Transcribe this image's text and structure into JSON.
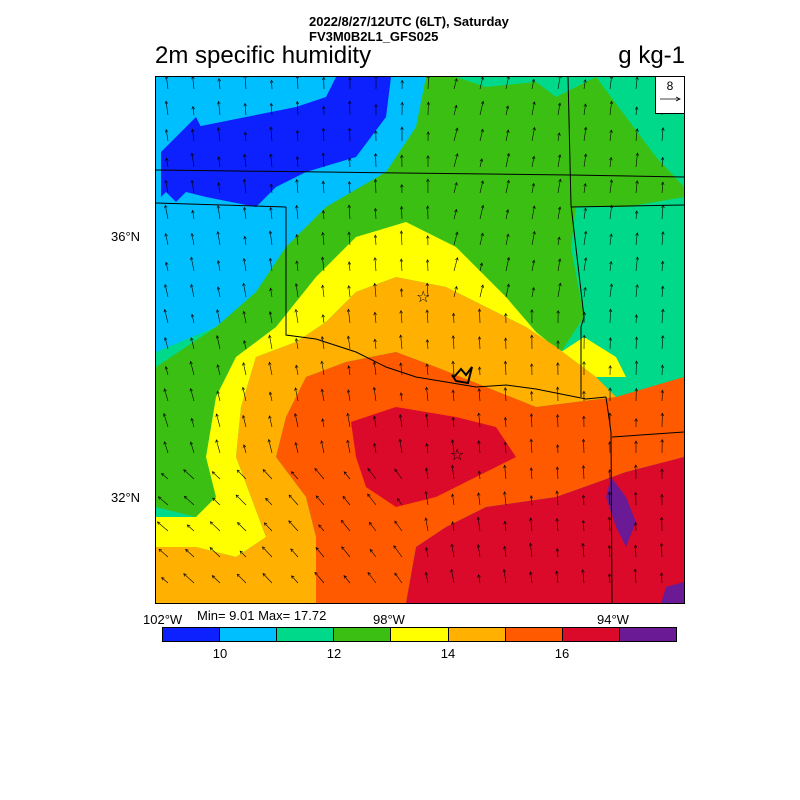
{
  "header": {
    "date_line": "2022/8/27/12UTC (6LT), Saturday",
    "model_line": "FV3M0B2L1_GFS025"
  },
  "title": "2m specific humidity",
  "units": "g kg-1",
  "vector_ref": {
    "value": "8"
  },
  "axis": {
    "lat_labels": [
      "36°N",
      "32°N"
    ],
    "lon_labels": [
      "102°W",
      "98°W",
      "94°W"
    ]
  },
  "stats": "Min= 9.01 Max= 17.72",
  "colorbar": {
    "colors": [
      "#0d21ff",
      "#00bfff",
      "#00d98a",
      "#3cbf13",
      "#ffff00",
      "#ffb000",
      "#ff5a00",
      "#dc0a2a",
      "#6a1a94"
    ],
    "labels": [
      "10",
      "12",
      "14",
      "16"
    ]
  },
  "map_colors": {
    "blue": "#0d21ff",
    "cyan": "#00bfff",
    "teal": "#00d98a",
    "green": "#3cbf13",
    "yellow": "#ffff00",
    "orange": "#ffb000",
    "red_orange": "#ff5a00",
    "red": "#dc0a2a",
    "purple": "#6a1a94"
  }
}
